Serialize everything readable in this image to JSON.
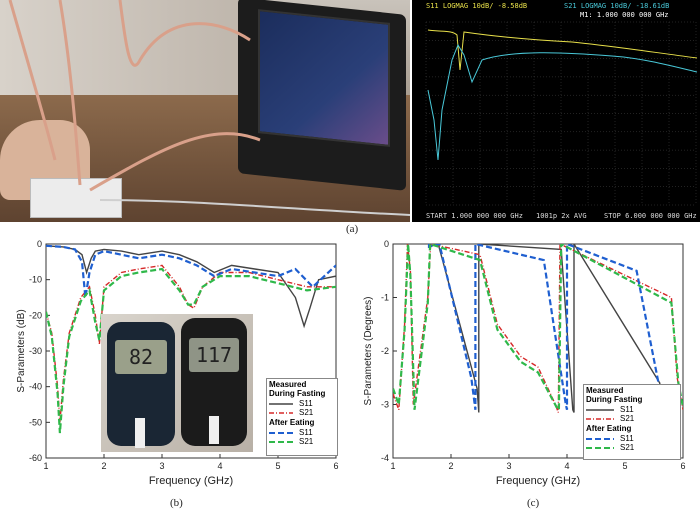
{
  "labels": {
    "a": "(a)",
    "b": "(b)",
    "c": "(c)"
  },
  "vna": {
    "s11_header": "S11 LOGMAG 10dB/ -8.58dB",
    "s21_header": "S21 LOGMAG 10dB/ -18.61dB",
    "marker": "M1: 1.000 000 000 GHz",
    "start": "START 1.000 000 000 GHz",
    "avg": "1001p 2x AVG",
    "stop": "STOP 6.000 000 000 GHz",
    "colors": {
      "s11": "#e8e04a",
      "s21": "#49c8d8"
    }
  },
  "meters": {
    "left_reading": "82",
    "right_reading": "117"
  },
  "legend": {
    "fasting_title": "Measured\nDuring Fasting",
    "after_title": "After Eating",
    "s11": "S11",
    "s21": "S21"
  },
  "chart_data": [
    {
      "type": "line",
      "xlabel": "Frequency (GHz)",
      "ylabel": "S-Parameters (dB)",
      "xlim": [
        1,
        6
      ],
      "ylim": [
        -60,
        0
      ],
      "xticks": [
        1,
        2,
        3,
        4,
        5,
        6
      ],
      "yticks": [
        0,
        -10,
        -20,
        -30,
        -40,
        -50,
        -60
      ],
      "series": [
        {
          "name": "S11",
          "group": "Measured During Fasting",
          "color": "#444444",
          "dash": "",
          "x": [
            1.0,
            1.3,
            1.5,
            1.62,
            1.7,
            1.78,
            1.85,
            2.0,
            2.3,
            2.6,
            3.0,
            3.3,
            3.6,
            3.9,
            4.2,
            4.6,
            5.0,
            5.3,
            5.45,
            5.55,
            5.7,
            6.0
          ],
          "y": [
            -0.5,
            -0.8,
            -1.5,
            -3,
            -8,
            -4,
            -2,
            -1.5,
            -2,
            -3,
            -2,
            -3,
            -5,
            -8,
            -6,
            -7,
            -8,
            -15,
            -23,
            -18,
            -10,
            -9
          ]
        },
        {
          "name": "S21",
          "group": "Measured During Fasting",
          "color": "#d62828",
          "dash": "5,2,1,2",
          "x": [
            1.0,
            1.1,
            1.2,
            1.24,
            1.3,
            1.4,
            1.6,
            1.75,
            1.85,
            1.92,
            2.0,
            2.3,
            2.6,
            3.0,
            3.3,
            3.45,
            3.55,
            3.7,
            4.0,
            4.5,
            5.0,
            5.5,
            6.0
          ],
          "y": [
            -19,
            -25,
            -40,
            -50,
            -38,
            -25,
            -15,
            -12,
            -20,
            -28,
            -12,
            -8,
            -7,
            -6,
            -12,
            -17,
            -18,
            -12,
            -8,
            -8,
            -10,
            -12,
            -12
          ]
        },
        {
          "name": "S11",
          "group": "After Eating",
          "color": "#1f5fd0",
          "dash": "6,3",
          "x": [
            1.0,
            1.3,
            1.5,
            1.62,
            1.68,
            1.75,
            1.85,
            2.0,
            2.3,
            2.6,
            3.0,
            3.3,
            3.6,
            3.9,
            4.2,
            4.6,
            5.0,
            5.3,
            5.6,
            5.8,
            6.0
          ],
          "y": [
            -0.5,
            -0.8,
            -1.5,
            -5,
            -15,
            -8,
            -3,
            -2,
            -3,
            -4,
            -3,
            -4,
            -6,
            -9,
            -7,
            -8,
            -9,
            -7,
            -12,
            -9,
            -6
          ]
        },
        {
          "name": "S21",
          "group": "After Eating",
          "color": "#2fb84a",
          "dash": "6,3",
          "x": [
            1.0,
            1.1,
            1.2,
            1.24,
            1.3,
            1.4,
            1.6,
            1.75,
            1.85,
            1.92,
            2.0,
            2.3,
            2.6,
            3.0,
            3.3,
            3.45,
            3.55,
            3.7,
            4.0,
            4.5,
            5.0,
            5.5,
            6.0
          ],
          "y": [
            -19,
            -26,
            -42,
            -53,
            -40,
            -26,
            -16,
            -13,
            -22,
            -27,
            -13,
            -9,
            -8,
            -7,
            -13,
            -17,
            -17,
            -12,
            -9,
            -9,
            -11,
            -13,
            -12
          ]
        }
      ]
    },
    {
      "type": "line",
      "xlabel": "Frequency (GHz)",
      "ylabel": "S-Parameters (Degrees)",
      "xlim": [
        1,
        6
      ],
      "ylim": [
        -4,
        0
      ],
      "xticks": [
        1,
        2,
        3,
        4,
        5,
        6
      ],
      "yticks": [
        0,
        -1,
        -2,
        -3,
        -4
      ],
      "series": [
        {
          "name": "S11",
          "group": "Measured During Fasting",
          "color": "#444444",
          "dash": "",
          "x": [
            1.62,
            1.62,
            1.78,
            2.45,
            2.48,
            2.48,
            3.9,
            4.1,
            4.12,
            4.12,
            5.6,
            5.6
          ],
          "y": [
            0,
            -0.05,
            0,
            -2.7,
            -3.15,
            0,
            -0.1,
            -3.1,
            -3.15,
            0,
            -2.6,
            -3.1
          ]
        },
        {
          "name": "S21",
          "group": "Measured During Fasting",
          "color": "#d62828",
          "dash": "5,2,1,2",
          "x": [
            1.0,
            1.1,
            1.2,
            1.25,
            1.3,
            1.35,
            1.6,
            1.65,
            2.5,
            2.8,
            3.2,
            3.5,
            3.8,
            3.85,
            3.88,
            5.8,
            5.9,
            6.0
          ],
          "y": [
            -2.8,
            -3.1,
            -1.5,
            0,
            -0.5,
            -3.0,
            -1.0,
            0,
            -0.2,
            -1.5,
            -2.1,
            -2.3,
            -3.0,
            -3.15,
            0,
            -1.0,
            -2.5,
            -3.1
          ]
        },
        {
          "name": "S11",
          "group": "After Eating",
          "color": "#1f5fd0",
          "dash": "6,3",
          "x": [
            1.62,
            1.62,
            1.8,
            2.35,
            2.42,
            2.42,
            3.6,
            3.98,
            4.0,
            4.0,
            5.2,
            5.65,
            5.68
          ],
          "y": [
            0,
            -0.05,
            0,
            -2.5,
            -3.1,
            0,
            -0.3,
            -3.0,
            -3.1,
            0,
            -0.5,
            -3.0,
            -3.1
          ]
        },
        {
          "name": "S21",
          "group": "After Eating",
          "color": "#2fb84a",
          "dash": "6,3",
          "x": [
            1.0,
            1.1,
            1.2,
            1.26,
            1.3,
            1.37,
            1.6,
            1.64,
            2.5,
            2.8,
            3.2,
            3.5,
            3.82,
            3.86,
            3.9,
            5.8,
            5.92,
            6.0
          ],
          "y": [
            -2.7,
            -3.0,
            -1.6,
            0,
            -0.6,
            -3.1,
            -1.1,
            0,
            -0.3,
            -1.6,
            -2.2,
            -2.4,
            -3.05,
            -3.1,
            0,
            -1.1,
            -2.6,
            -3.05
          ]
        }
      ]
    }
  ]
}
